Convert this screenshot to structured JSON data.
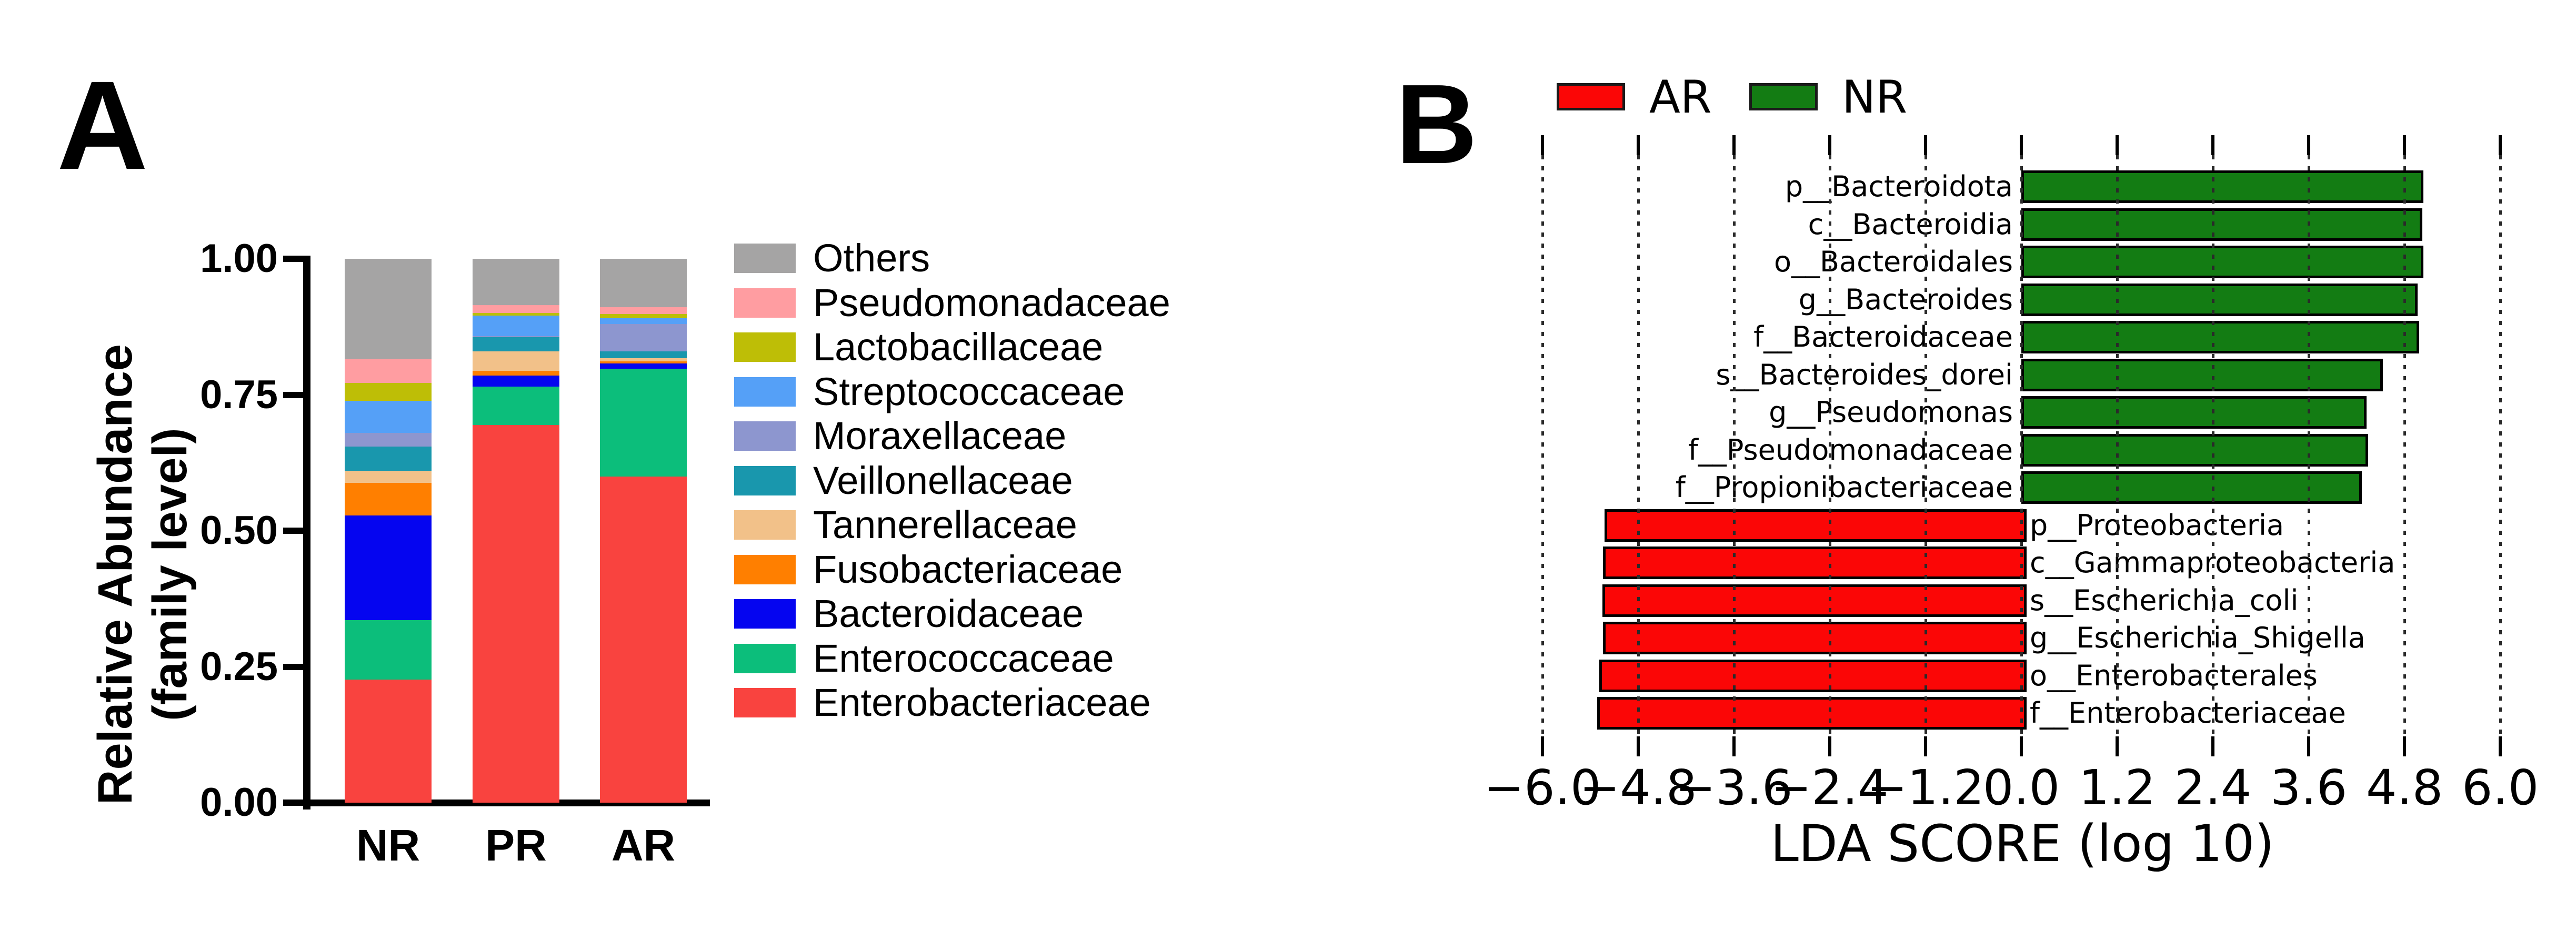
{
  "panel_a": {
    "label": "A",
    "y_axis": {
      "title_line1": "Relative Abundance",
      "title_line2": "(family level)",
      "tick_labels": [
        "0.00",
        "0.25",
        "0.50",
        "0.75",
        "1.00"
      ],
      "tick_values": [
        0,
        0.25,
        0.5,
        0.75,
        1.0
      ],
      "range": [
        0,
        1
      ]
    },
    "x_categories": [
      "NR",
      "PR",
      "AR"
    ],
    "legend_order_top_to_bottom": [
      "Others",
      "Pseudomonadaceae",
      "Lactobacillaceae",
      "Streptococcaceae",
      "Moraxellaceae",
      "Veillonellaceae",
      "Tannerellaceae",
      "Fusobacteriaceae",
      "Bacteroidaceae",
      "Enterococcaceae",
      "Enterobacteriaceae"
    ]
  },
  "panel_b": {
    "label": "B",
    "legend": [
      {
        "label": "AR",
        "color": "#fb0606"
      },
      {
        "label": "NR",
        "color": "#137c13"
      }
    ],
    "x_axis": {
      "title": "LDA SCORE (log 10)",
      "tick_labels": [
        "−6.0",
        "−4.8",
        "−3.6",
        "−2.4",
        "−1.2",
        "0.0",
        "1.2",
        "2.4",
        "3.6",
        "4.8",
        "6.0"
      ],
      "tick_values": [
        -6,
        -4.8,
        -3.6,
        -2.4,
        -1.2,
        0,
        1.2,
        2.4,
        3.6,
        4.8,
        6
      ]
    }
  },
  "chart_data": [
    {
      "type": "bar",
      "variant": "stacked-vertical",
      "title": "",
      "ylabel": "Relative Abundance (family level)",
      "ylim": [
        0,
        1
      ],
      "grid": false,
      "categories": [
        "NR",
        "PR",
        "AR"
      ],
      "series_bottom_to_top": [
        {
          "name": "Enterobacteriaceae",
          "color": "#f9433f",
          "values": [
            0.226,
            0.694,
            0.6
          ]
        },
        {
          "name": "Enterococcaceae",
          "color": "#0cbe7b",
          "values": [
            0.11,
            0.071,
            0.198
          ]
        },
        {
          "name": "Bacteroidaceae",
          "color": "#0505f0",
          "values": [
            0.192,
            0.02,
            0.01
          ]
        },
        {
          "name": "Fusobacteriaceae",
          "color": "#ff7f00",
          "values": [
            0.06,
            0.009,
            0.003
          ]
        },
        {
          "name": "Tannerellaceae",
          "color": "#f2c189",
          "values": [
            0.022,
            0.036,
            0.006
          ]
        },
        {
          "name": "Veillonellaceae",
          "color": "#1997ad",
          "values": [
            0.045,
            0.026,
            0.013
          ]
        },
        {
          "name": "Moraxellaceae",
          "color": "#8d96cf",
          "values": [
            0.025,
            0.002,
            0.05
          ]
        },
        {
          "name": "Streptococcaceae",
          "color": "#55a0f7",
          "values": [
            0.059,
            0.038,
            0.011
          ]
        },
        {
          "name": "Lactobacillaceae",
          "color": "#bebe06",
          "values": [
            0.033,
            0.004,
            0.007
          ]
        },
        {
          "name": "Pseudomonadaceae",
          "color": "#ff9da1",
          "values": [
            0.043,
            0.015,
            0.013
          ]
        },
        {
          "name": "Others",
          "color": "#a5a4a4",
          "values": [
            0.185,
            0.085,
            0.089
          ]
        }
      ]
    },
    {
      "type": "bar",
      "variant": "horizontal-diverging",
      "title": "",
      "xlabel": "LDA SCORE (log 10)",
      "xlim": [
        -6,
        6
      ],
      "xticks": [
        -6,
        -4.8,
        -3.6,
        -2.4,
        -1.2,
        0,
        1.2,
        2.4,
        3.6,
        4.8,
        6
      ],
      "grid": "dotted-vertical",
      "legend_position": "top",
      "groups": {
        "AR": "#fb0606",
        "NR": "#137c13"
      },
      "bars_top_to_bottom": [
        {
          "label": "p__Bacteroidota",
          "group": "NR",
          "value": 4.97
        },
        {
          "label": "c__Bacteroidia",
          "group": "NR",
          "value": 4.96
        },
        {
          "label": "o__Bacteroidales",
          "group": "NR",
          "value": 4.97
        },
        {
          "label": "g__Bacteroides",
          "group": "NR",
          "value": 4.9
        },
        {
          "label": "f__Bacteroidaceae",
          "group": "NR",
          "value": 4.92
        },
        {
          "label": "s__Bacteroides_dorei",
          "group": "NR",
          "value": 4.46
        },
        {
          "label": "g__Pseudomonas",
          "group": "NR",
          "value": 4.26
        },
        {
          "label": "f__Pseudomonadaceae",
          "group": "NR",
          "value": 4.28
        },
        {
          "label": "f__Propionibacteriaceae",
          "group": "NR",
          "value": 4.2
        },
        {
          "label": "p__Proteobacteria",
          "group": "AR",
          "value": -5.22
        },
        {
          "label": "c__Gammaproteobacteria",
          "group": "AR",
          "value": -5.24
        },
        {
          "label": "s__Escherichia_coli",
          "group": "AR",
          "value": -5.25
        },
        {
          "label": "g__Escherichia_Shigella",
          "group": "AR",
          "value": -5.24
        },
        {
          "label": "o__Enterobacterales",
          "group": "AR",
          "value": -5.29
        },
        {
          "label": "f__Enterobacteriaceae",
          "group": "AR",
          "value": -5.31
        }
      ]
    }
  ]
}
